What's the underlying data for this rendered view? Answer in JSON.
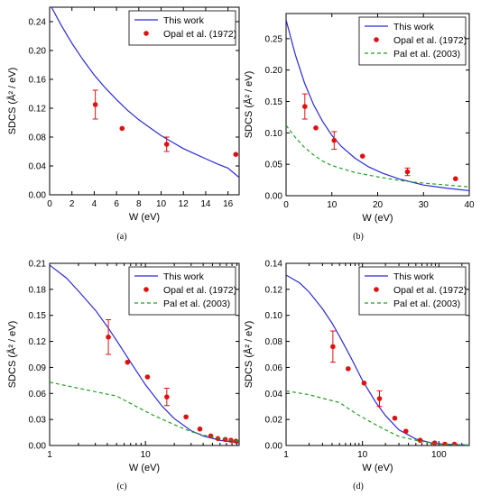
{
  "colors": {
    "this_work": "#2b2bd6",
    "opal": "#e01010",
    "pal": "#22a022",
    "axis": "#000000"
  },
  "chart_data": [
    {
      "panel": "(a)",
      "type": "line",
      "xscale": "linear",
      "xlabel": "W (eV)",
      "ylabel": "SDCS (Å² / eV)",
      "xlim": [
        0,
        17
      ],
      "ylim": [
        0,
        0.26
      ],
      "xticks": [
        0,
        2,
        4,
        6,
        8,
        10,
        12,
        14,
        16
      ],
      "yticks": [
        0,
        0.04,
        0.08,
        0.12,
        0.16,
        0.2,
        0.24
      ],
      "ytick_labels": [
        "0.00",
        "0.04",
        "0.08",
        "0.12",
        "0.16",
        "0.20",
        "0.24"
      ],
      "grid": false,
      "legend_position": "top-right",
      "series": [
        {
          "name": "This work",
          "style": "line",
          "x": [
            0,
            1,
            2,
            3,
            4,
            5,
            6,
            7,
            8,
            9,
            10,
            11,
            12,
            13,
            14,
            15,
            16,
            17
          ],
          "y": [
            0.265,
            0.236,
            0.21,
            0.187,
            0.166,
            0.148,
            0.132,
            0.117,
            0.104,
            0.093,
            0.082,
            0.073,
            0.064,
            0.057,
            0.05,
            0.043,
            0.037,
            0.024
          ]
        },
        {
          "name": "Opal et al. (1972)",
          "style": "points",
          "x": [
            4.1,
            6.5,
            10.5,
            16.7
          ],
          "y": [
            0.125,
            0.092,
            0.07,
            0.056
          ],
          "err": [
            0.02,
            0,
            0.01,
            0
          ]
        }
      ]
    },
    {
      "panel": "(b)",
      "type": "line",
      "xscale": "linear",
      "xlabel": "W (eV)",
      "ylabel": "SDCS (Å² / eV)",
      "xlim": [
        0,
        40
      ],
      "ylim": [
        0,
        0.29
      ],
      "xticks": [
        0,
        10,
        20,
        30,
        40
      ],
      "yticks": [
        0,
        0.05,
        0.1,
        0.15,
        0.2,
        0.25
      ],
      "ytick_labels": [
        "0.00",
        "0.05",
        "0.10",
        "0.15",
        "0.20",
        "0.25"
      ],
      "grid": false,
      "legend_position": "top-right",
      "series": [
        {
          "name": "This work",
          "style": "line",
          "x": [
            0,
            2,
            4,
            6,
            8,
            10,
            12,
            15,
            18,
            21,
            25,
            30,
            35,
            40
          ],
          "y": [
            0.28,
            0.225,
            0.18,
            0.145,
            0.118,
            0.096,
            0.079,
            0.06,
            0.046,
            0.036,
            0.026,
            0.017,
            0.012,
            0.008
          ]
        },
        {
          "name": "Opal et al. (1972)",
          "style": "points",
          "x": [
            4.1,
            6.5,
            10.5,
            16.7,
            26.5,
            37
          ],
          "y": [
            0.142,
            0.108,
            0.088,
            0.063,
            0.038,
            0.027
          ],
          "err": [
            0.02,
            0,
            0.014,
            0,
            0.006,
            0
          ]
        },
        {
          "name": "Pal et al. (2003)",
          "style": "dashed",
          "x": [
            0,
            2,
            4,
            6,
            8,
            10,
            15,
            20,
            25,
            30,
            35,
            40
          ],
          "y": [
            0.112,
            0.093,
            0.077,
            0.065,
            0.055,
            0.048,
            0.037,
            0.03,
            0.024,
            0.02,
            0.017,
            0.014
          ]
        }
      ]
    },
    {
      "panel": "(c)",
      "type": "line",
      "xscale": "log",
      "xlabel": "W (eV)",
      "ylabel": "SDCS (Å² / eV)",
      "xlim": [
        1,
        95
      ],
      "ylim": [
        0,
        0.21
      ],
      "xticks": [
        1,
        10
      ],
      "yticks": [
        0,
        0.03,
        0.06,
        0.09,
        0.12,
        0.15,
        0.18,
        0.21
      ],
      "ytick_labels": [
        "0.00",
        "0.03",
        "0.06",
        "0.09",
        "0.12",
        "0.15",
        "0.18",
        "0.21"
      ],
      "grid": false,
      "legend_position": "top-right",
      "series": [
        {
          "name": "This work",
          "style": "line",
          "x": [
            1,
            1.5,
            2,
            3,
            4,
            5,
            7,
            10,
            15,
            20,
            30,
            40,
            60,
            95
          ],
          "y": [
            0.208,
            0.193,
            0.178,
            0.156,
            0.137,
            0.121,
            0.096,
            0.07,
            0.045,
            0.031,
            0.017,
            0.011,
            0.006,
            0.003
          ]
        },
        {
          "name": "Opal et al. (1972)",
          "style": "points",
          "x": [
            4.1,
            6.5,
            10.5,
            16.7,
            26.5,
            37,
            48,
            57,
            68,
            78,
            88
          ],
          "y": [
            0.125,
            0.096,
            0.079,
            0.056,
            0.033,
            0.019,
            0.011,
            0.008,
            0.007,
            0.006,
            0.005
          ],
          "err": [
            0.02,
            0,
            0,
            0.01,
            0,
            0,
            0,
            0,
            0,
            0,
            0
          ]
        },
        {
          "name": "Pal et al. (2003)",
          "style": "dashed",
          "x": [
            1,
            2,
            5,
            8,
            12,
            20,
            30,
            40,
            60,
            95
          ],
          "y": [
            0.073,
            0.066,
            0.057,
            0.045,
            0.035,
            0.024,
            0.016,
            0.012,
            0.008,
            0.005
          ]
        }
      ]
    },
    {
      "panel": "(d)",
      "type": "line",
      "xscale": "log",
      "xlabel": "W (eV)",
      "ylabel": "SDCS (Å² / eV)",
      "xlim": [
        1,
        250
      ],
      "ylim": [
        0,
        0.14
      ],
      "xticks": [
        1,
        10,
        100
      ],
      "yticks": [
        0,
        0.02,
        0.04,
        0.06,
        0.08,
        0.1,
        0.12,
        0.14
      ],
      "ytick_labels": [
        "0.00",
        "0.02",
        "0.04",
        "0.06",
        "0.08",
        "0.10",
        "0.12",
        "0.14"
      ],
      "grid": false,
      "legend_position": "top-right",
      "series": [
        {
          "name": "This work",
          "style": "line",
          "x": [
            1,
            1.5,
            2,
            3,
            4,
            5,
            7,
            10,
            15,
            20,
            30,
            50,
            80,
            120,
            250
          ],
          "y": [
            0.131,
            0.125,
            0.118,
            0.105,
            0.094,
            0.084,
            0.068,
            0.05,
            0.033,
            0.023,
            0.012,
            0.005,
            0.002,
            0.001,
            0.0003
          ]
        },
        {
          "name": "Opal et al. (1972)",
          "style": "points",
          "x": [
            4.1,
            6.5,
            10.5,
            16.7,
            26.5,
            37,
            57,
            88,
            120,
            160
          ],
          "y": [
            0.076,
            0.059,
            0.048,
            0.036,
            0.021,
            0.011,
            0.004,
            0.002,
            0.001,
            0.001
          ],
          "err": [
            0.012,
            0,
            0,
            0.006,
            0,
            0,
            0,
            0,
            0,
            0
          ]
        },
        {
          "name": "Pal et al. (2003)",
          "style": "dashed",
          "x": [
            1,
            2,
            5,
            8,
            12,
            20,
            30,
            50,
            100,
            250
          ],
          "y": [
            0.042,
            0.039,
            0.033,
            0.025,
            0.019,
            0.012,
            0.007,
            0.004,
            0.001,
            0.0003
          ]
        }
      ]
    }
  ]
}
